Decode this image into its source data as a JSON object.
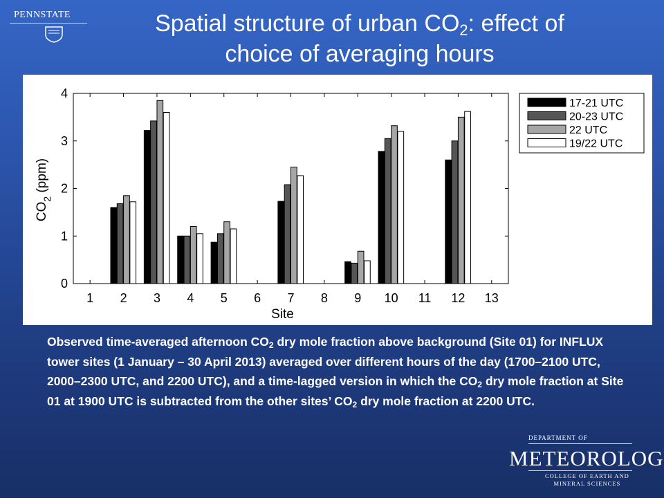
{
  "logos": {
    "pennstate": "PENNSTATE",
    "pennstate_year": "1 8 5 5",
    "met_dept": "DEPARTMENT OF",
    "met_name": "METEOROLOGY",
    "met_college_line1": "COLLEGE OF EARTH AND",
    "met_college_line2": "MINERAL SCIENCES"
  },
  "title": {
    "line1_pre": "Spatial structure of urban CO",
    "line1_sub": "2",
    "line1_post": ": effect of",
    "line2": "choice of averaging hours"
  },
  "caption": {
    "p1": "Observed time-averaged afternoon CO",
    "sub1": "2",
    "p2": " dry mole fraction above background (Site 01) for INFLUX tower sites (1 January – 30 April 2013) averaged over different hours of the day (1700–2100 UTC, 2000–2300 UTC, and 2200 UTC), and a time-lagged version in which the CO",
    "sub2": "2",
    "p3": " dry mole fraction at Site 01 at 1900 UTC is subtracted from the other sites’ CO",
    "sub3": "2",
    "p4": " dry mole fraction at 2200 UTC."
  },
  "chart_data": {
    "type": "bar",
    "xlabel": "Site",
    "ylabel": "CO",
    "ylabel_sub": "2",
    "ylabel_unit": "(ppm)",
    "categories": [
      "1",
      "2",
      "3",
      "4",
      "5",
      "6",
      "7",
      "8",
      "9",
      "10",
      "11",
      "12",
      "13"
    ],
    "yticks": [
      "0",
      "1",
      "2",
      "3",
      "4"
    ],
    "ylim": [
      0,
      4
    ],
    "legend_position": "right",
    "grid": false,
    "series": [
      {
        "name": "17-21 UTC",
        "color": "#000000",
        "values": [
          0,
          1.6,
          3.22,
          1.0,
          0.87,
          0,
          1.73,
          0,
          0.46,
          2.78,
          0,
          2.6,
          0
        ]
      },
      {
        "name": "20-23 UTC",
        "color": "#555555",
        "values": [
          0,
          1.68,
          3.42,
          1.0,
          1.05,
          0,
          2.08,
          0,
          0.43,
          3.05,
          0,
          3.0,
          0
        ]
      },
      {
        "name": "22 UTC",
        "color": "#a6a6a6",
        "values": [
          0,
          1.85,
          3.85,
          1.2,
          1.3,
          0,
          2.45,
          0,
          0.68,
          3.32,
          0,
          3.5,
          0
        ]
      },
      {
        "name": "19/22 UTC",
        "color": "#ffffff",
        "values": [
          0,
          1.72,
          3.6,
          1.05,
          1.15,
          0,
          2.27,
          0,
          0.48,
          3.2,
          0,
          3.62,
          0
        ]
      }
    ]
  }
}
